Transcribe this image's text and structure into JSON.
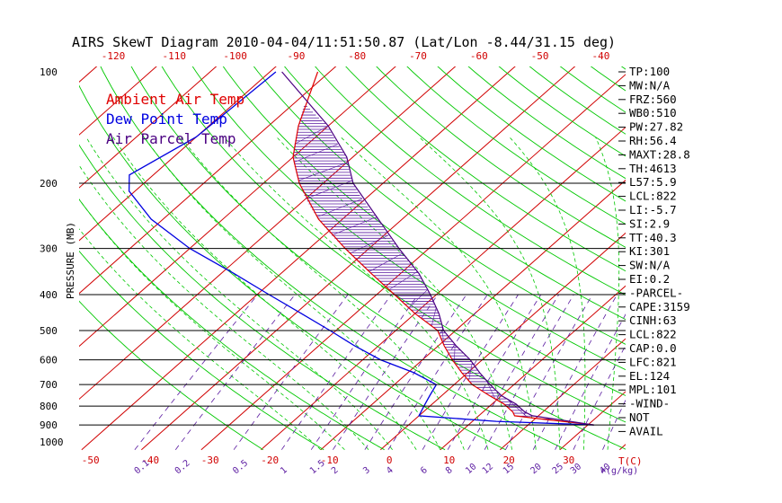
{
  "chart_data": {
    "type": "line",
    "title": "AIRS SkewT Diagram 2010-04-04/11:51:50.87 (Lat/Lon -8.44/31.15 deg)",
    "ylabel": "PRESSURE (MB)",
    "xlabel_unit": "T(C)",
    "mixing_unit": "r(g/kg)",
    "y_scale": "log",
    "ylim": [
      1000,
      100
    ],
    "pressure_ticks": [
      "100",
      "200",
      "300",
      "400",
      "500",
      "600",
      "700",
      "800",
      "900",
      "1000"
    ],
    "temp_ticks_bottom": [
      "-50",
      "-40",
      "-30",
      "-20",
      "-10",
      "0",
      "10",
      "20",
      "30"
    ],
    "temp_ticks_top": [
      "-120",
      "-110",
      "-100",
      "-90",
      "-80",
      "-70",
      "-60",
      "-50",
      "-40"
    ],
    "mixing_ratio_labels": [
      "0.1",
      "0.2",
      "0.5",
      "1",
      "1.5",
      "2",
      "3",
      "4",
      "6",
      "8",
      "10",
      "12",
      "15",
      "20",
      "25",
      "30",
      "40"
    ],
    "legend": [
      "Ambient Air Temp",
      "Dew Point Temp",
      "Air Parcel Temp"
    ],
    "series": [
      {
        "name": "Ambient Air Temp",
        "color": "#e00000",
        "points": [
          [
            100,
            -82
          ],
          [
            140,
            -75
          ],
          [
            170,
            -70
          ],
          [
            200,
            -64
          ],
          [
            250,
            -54
          ],
          [
            300,
            -44
          ],
          [
            350,
            -35
          ],
          [
            400,
            -27
          ],
          [
            450,
            -20
          ],
          [
            500,
            -13
          ],
          [
            550,
            -9
          ],
          [
            600,
            -5
          ],
          [
            650,
            -1
          ],
          [
            700,
            3
          ],
          [
            750,
            8
          ],
          [
            790,
            12
          ],
          [
            830,
            15
          ],
          [
            850,
            16
          ],
          [
            870,
            22
          ],
          [
            900,
            31
          ]
        ]
      },
      {
        "name": "Dew Point Temp",
        "color": "#0000e0",
        "points": [
          [
            100,
            -89
          ],
          [
            150,
            -90
          ],
          [
            190,
            -94
          ],
          [
            210,
            -91
          ],
          [
            250,
            -82
          ],
          [
            300,
            -70
          ],
          [
            350,
            -58
          ],
          [
            400,
            -48
          ],
          [
            450,
            -39
          ],
          [
            500,
            -31
          ],
          [
            550,
            -24
          ],
          [
            600,
            -17
          ],
          [
            650,
            -9
          ],
          [
            700,
            -3
          ],
          [
            750,
            -2
          ],
          [
            800,
            -1
          ],
          [
            850,
            0
          ],
          [
            880,
            14
          ],
          [
            900,
            31
          ]
        ]
      },
      {
        "name": "Air Parcel Temp",
        "color": "#4b0082",
        "points": [
          [
            100,
            -88
          ],
          [
            140,
            -70
          ],
          [
            170,
            -61
          ],
          [
            200,
            -55
          ],
          [
            250,
            -44
          ],
          [
            300,
            -35
          ],
          [
            350,
            -27
          ],
          [
            400,
            -21
          ],
          [
            450,
            -16
          ],
          [
            500,
            -12
          ],
          [
            550,
            -7
          ],
          [
            600,
            -2
          ],
          [
            650,
            2
          ],
          [
            700,
            6
          ],
          [
            750,
            10
          ],
          [
            790,
            14
          ],
          [
            830,
            17
          ],
          [
            850,
            19
          ],
          [
            870,
            24
          ],
          [
            900,
            31
          ]
        ]
      }
    ],
    "stats": [
      "TP:100",
      "MW:N/A",
      "FRZ:560",
      "WB0:510",
      "PW:27.82",
      "RH:56.4",
      "MAXT:28.8",
      "TH:4613",
      "L57:5.9",
      "LCL:822",
      "LI:-5.7",
      "SI:2.9",
      "TT:40.3",
      "KI:301",
      "SW:N/A",
      "EI:0.2",
      "-PARCEL-",
      "CAPE:3159",
      "CINH:63",
      "LCL:822",
      "CAP:0.0",
      "LFC:821",
      "EL:124",
      "MPL:101",
      "-WIND-",
      "NOT",
      "AVAIL"
    ],
    "colors": {
      "isotherm": "#d00000",
      "dry_adiabat": "#00c800",
      "moist_adiabat": "#00c800",
      "mixing_ratio": "#5a1aa0",
      "isobar": "#000000",
      "hatch": "#5a1aa0"
    }
  }
}
